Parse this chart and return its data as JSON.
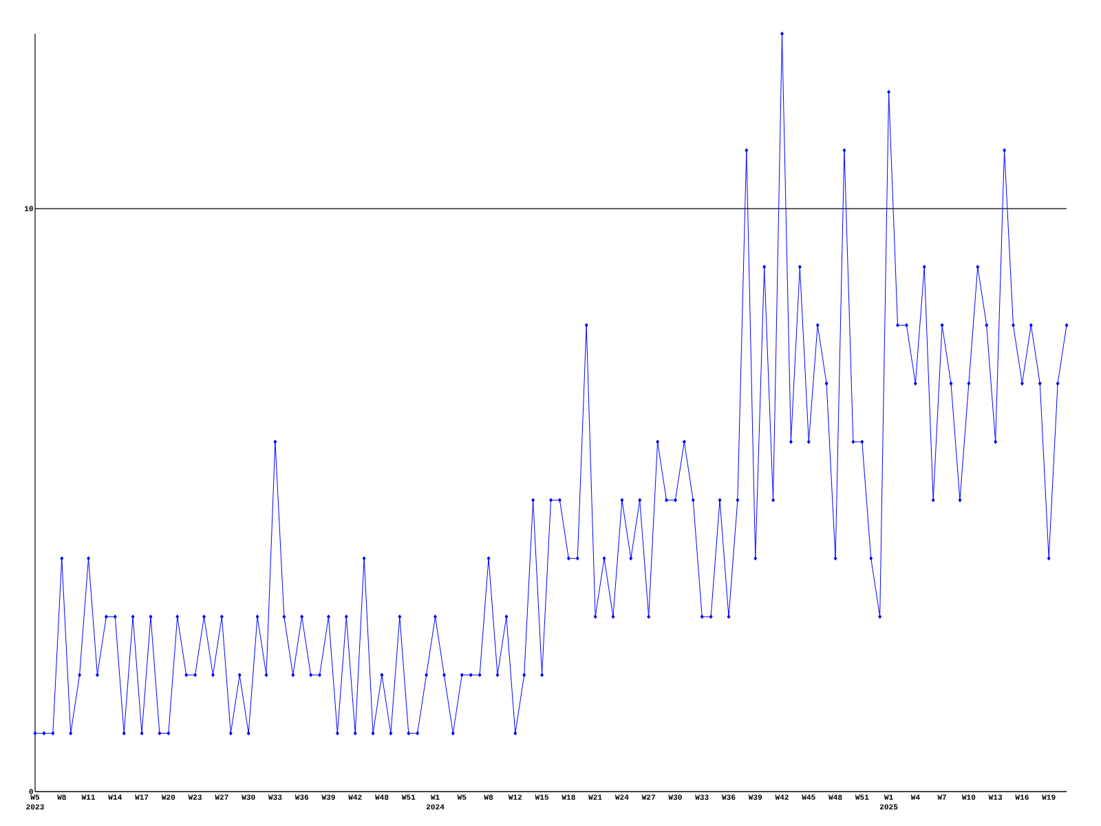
{
  "chart_data": {
    "type": "line",
    "categories": [
      "W5",
      null,
      null,
      "W8",
      null,
      null,
      "W11",
      null,
      null,
      "W14",
      null,
      null,
      "W17",
      null,
      null,
      "W20",
      null,
      null,
      "W23",
      null,
      null,
      "W27",
      null,
      null,
      "W30",
      null,
      null,
      "W33",
      null,
      null,
      "W36",
      null,
      null,
      "W39",
      null,
      null,
      "W42",
      null,
      null,
      "W48",
      null,
      null,
      "W51",
      null,
      null,
      "W1",
      null,
      null,
      "W5",
      null,
      null,
      "W8",
      null,
      null,
      "W12",
      null,
      null,
      "W15",
      null,
      null,
      "W18",
      null,
      null,
      "W21",
      null,
      null,
      "W24",
      null,
      null,
      "W27",
      null,
      null,
      "W30",
      null,
      null,
      "W33",
      null,
      null,
      "W36",
      null,
      null,
      "W39",
      null,
      null,
      "W42",
      null,
      null,
      "W45",
      null,
      null,
      "W48",
      null,
      null,
      "W51",
      null,
      null,
      "W1",
      null,
      null,
      "W4",
      null,
      null,
      "W7",
      null,
      null,
      "W10",
      null,
      null,
      "W13",
      null,
      null,
      "W16",
      null,
      null,
      "W19",
      null,
      null
    ],
    "values": [
      1,
      1,
      1,
      4,
      1,
      2,
      4,
      2,
      3,
      3,
      1,
      3,
      1,
      3,
      1,
      1,
      3,
      2,
      2,
      3,
      2,
      3,
      1,
      2,
      1,
      3,
      2,
      6,
      3,
      2,
      3,
      2,
      2,
      3,
      1,
      3,
      1,
      4,
      1,
      2,
      1,
      3,
      1,
      1,
      2,
      3,
      2,
      1,
      2,
      2,
      2,
      4,
      2,
      3,
      1,
      2,
      5,
      2,
      5,
      5,
      4,
      4,
      8,
      3,
      4,
      3,
      5,
      4,
      5,
      3,
      6,
      5,
      5,
      6,
      5,
      3,
      3,
      5,
      3,
      5,
      11,
      4,
      9,
      5,
      13,
      6,
      9,
      6,
      8,
      7,
      4,
      11,
      6,
      6,
      4,
      3,
      12,
      8,
      8,
      7,
      9,
      5,
      8,
      7,
      5,
      7,
      9,
      8,
      6,
      11,
      8,
      7,
      8,
      7,
      4,
      7,
      8
    ],
    "color": "#0000ff",
    "marker": "diamond",
    "line_style": "solid",
    "ylim": [
      0,
      13
    ],
    "yticks": [
      0,
      10
    ],
    "grid": "y",
    "annotations": [
      "2023",
      "2024",
      "2025"
    ]
  }
}
